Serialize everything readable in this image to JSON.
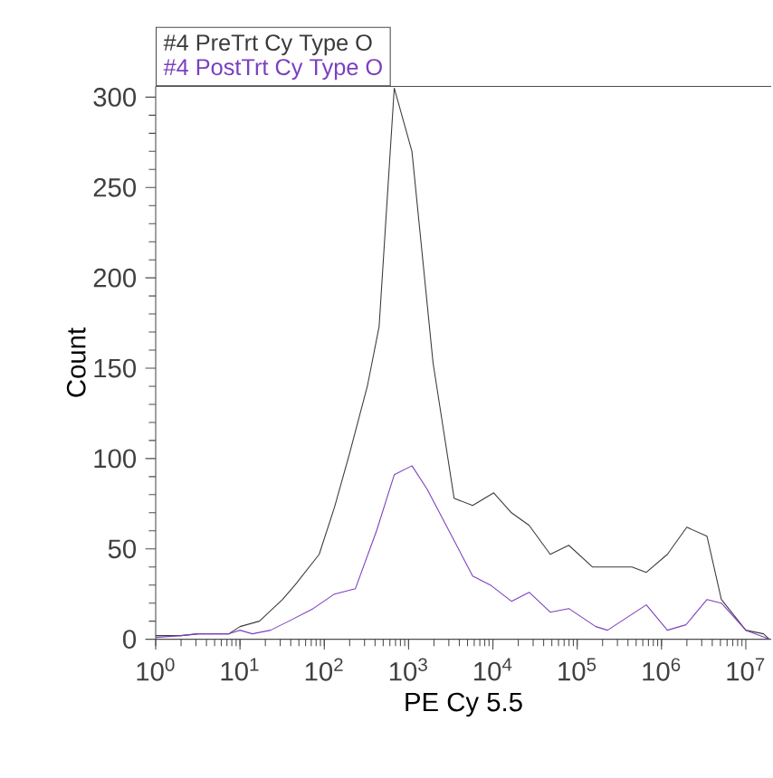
{
  "chart_data": {
    "type": "line",
    "xlabel": "PE Cy 5.5",
    "ylabel": "Count",
    "log": "x",
    "legend": "top left",
    "grid": false,
    "marker": "none",
    "line_style": "solid",
    "xlim": [
      1,
      20000000
    ],
    "ylim": [
      0,
      306
    ],
    "xticks": [
      {
        "value": 1,
        "label": "10$^{0}$"
      },
      {
        "value": 10,
        "label": "10$^{1}$"
      },
      {
        "value": 100,
        "label": "10$^{2}$"
      },
      {
        "value": 1000,
        "label": "10$^{3}$"
      },
      {
        "value": 10000,
        "label": "10$^{4}$"
      },
      {
        "value": 100000,
        "label": "10$^{5}$"
      },
      {
        "value": 1000000,
        "label": "10$^{6}$"
      },
      {
        "value": 10000000,
        "label": "10$^{7}$"
      }
    ],
    "yticks": [
      0,
      50,
      100,
      150,
      200,
      250,
      300
    ],
    "series": [
      {
        "name": "#4 PreTrt Cy Type O",
        "color": "#3a3a3a",
        "x": [
          1,
          2,
          3.2,
          7.4,
          10,
          17,
          32,
          45,
          87,
          132,
          200,
          324,
          447,
          676,
          1096,
          1950,
          3467,
          5754,
          10233,
          16596,
          26915,
          47863,
          79433,
          151356,
          446684,
          660693,
          1174898,
          1995262,
          3467369,
          5128614,
          10000000,
          16218101,
          19054607
        ],
        "values": [
          2,
          2,
          3,
          3,
          7,
          10,
          22,
          30,
          47,
          73,
          103,
          140,
          173,
          305,
          270,
          153,
          78,
          74,
          81,
          70,
          63,
          47,
          52,
          40,
          40,
          37,
          47,
          62,
          57,
          22,
          5,
          3,
          0
        ]
      },
      {
        "name": "#4 PostTrt Cy Type O",
        "color": "#7b3fbf",
        "x": [
          1,
          2,
          3.2,
          7.4,
          10,
          14,
          23,
          38,
          74,
          132,
          234,
          417,
          676,
          1096,
          1660,
          5754,
          9333,
          16596,
          26915,
          47863,
          79433,
          165959,
          229087,
          660693,
          1174898,
          1949845,
          3467369,
          5128614,
          10000000,
          19054607
        ],
        "values": [
          1,
          2,
          3,
          3,
          5,
          3,
          5,
          10,
          17,
          25,
          28,
          60,
          91,
          96,
          83,
          35,
          30,
          21,
          26,
          15,
          17,
          7,
          5,
          19,
          5,
          8,
          22,
          20,
          5,
          0
        ]
      }
    ]
  }
}
